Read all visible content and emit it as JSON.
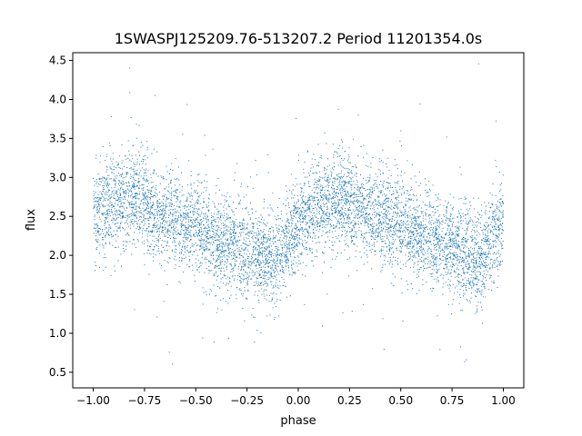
{
  "chart_data": {
    "type": "scatter",
    "title": "1SWASPJ125209.76-513207.2 Period 11201354.0s",
    "xlabel": "phase",
    "ylabel": "flux",
    "xlim": [
      -1.1,
      1.1
    ],
    "ylim": [
      0.3,
      4.6
    ],
    "xticks": [
      -1.0,
      -0.75,
      -0.5,
      -0.25,
      0.0,
      0.25,
      0.5,
      0.75,
      1.0
    ],
    "xtick_labels": [
      "−1.00",
      "−0.75",
      "−0.50",
      "−0.25",
      "0.00",
      "0.25",
      "0.50",
      "0.75",
      "1.00"
    ],
    "yticks": [
      0.5,
      1.0,
      1.5,
      2.0,
      2.5,
      3.0,
      3.5,
      4.0,
      4.5
    ],
    "ytick_labels": [
      "0.5",
      "1.0",
      "1.5",
      "2.0",
      "2.5",
      "3.0",
      "3.5",
      "4.0",
      "4.5"
    ],
    "grid": false,
    "marker_color": "#1f77b4",
    "profile": {
      "x": [
        -1.0,
        -0.9,
        -0.8,
        -0.7,
        -0.6,
        -0.5,
        -0.4,
        -0.3,
        -0.2,
        -0.1,
        0.0,
        0.1,
        0.2,
        0.3,
        0.4,
        0.5,
        0.6,
        0.7,
        0.8,
        0.9,
        1.0
      ],
      "y": [
        2.55,
        2.65,
        2.75,
        2.55,
        2.45,
        2.35,
        2.2,
        2.1,
        2.0,
        1.95,
        2.45,
        2.6,
        2.75,
        2.6,
        2.5,
        2.4,
        2.25,
        2.15,
        2.0,
        1.95,
        2.5
      ]
    }
  }
}
